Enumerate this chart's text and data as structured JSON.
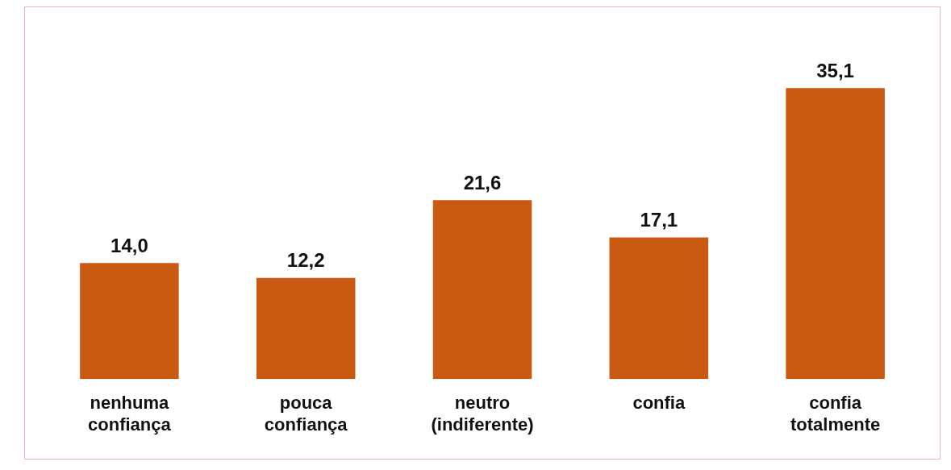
{
  "chart_data": {
    "type": "bar",
    "categories": [
      "nenhuma confiança",
      "pouca confiança",
      "neutro (indiferente)",
      "confia",
      "confia totalmente"
    ],
    "values": [
      14.0,
      12.2,
      21.6,
      17.1,
      35.1
    ],
    "value_labels": [
      "14,0",
      "12,2",
      "21,6",
      "17,1",
      "35,1"
    ],
    "color": "#c85a12",
    "grid": false,
    "legend": false
  }
}
